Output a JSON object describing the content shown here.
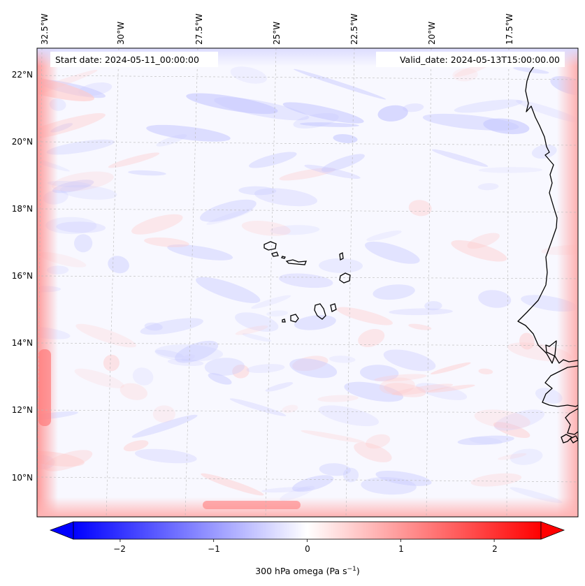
{
  "map": {
    "start_date_label": "Start date: 2024-05-11_00:00:00",
    "valid_date_label": "Valid_date: 2024-05-13T15:00:00.00",
    "lon_labels": [
      "32.5°W",
      "30°W",
      "27.5°W",
      "25°W",
      "22.5°W",
      "20°W",
      "17.5°W"
    ],
    "lat_labels": [
      "22°N",
      "20°N",
      "18°N",
      "16°N",
      "14°N",
      "12°N",
      "10°N"
    ],
    "gridlines": "dashed",
    "colormap": "bwr",
    "colors": {
      "negative": "#0000ff",
      "zero": "#ffffff",
      "positive": "#ff0000",
      "coastline": "#000000"
    }
  },
  "colorbar": {
    "tick_labels": [
      "−2",
      "−1",
      "0",
      "1",
      "2"
    ],
    "tick_values": [
      -2,
      -1,
      0,
      1,
      2
    ],
    "range": [
      -2.5,
      2.5
    ],
    "extend": "both",
    "label_text": "300 hPa omega (Pa s",
    "label_exp": "−1",
    "label_close": ")"
  }
}
